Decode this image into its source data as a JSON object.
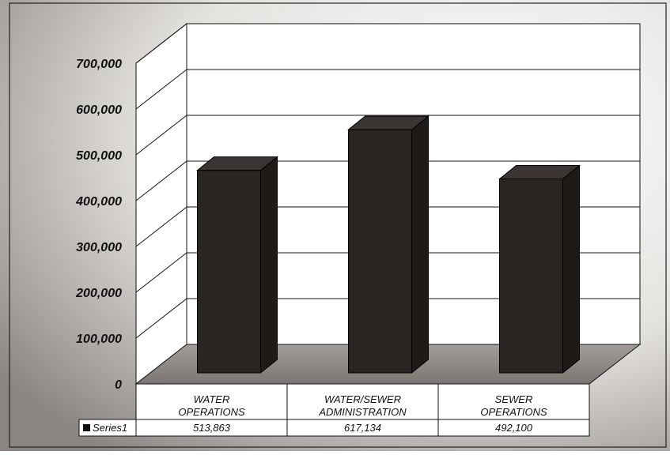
{
  "chart_data": {
    "type": "bar",
    "style": "3d-column",
    "categories": [
      "WATER OPERATIONS",
      "WATER/SEWER ADMINISTRATION",
      "SEWER OPERATIONS"
    ],
    "category_lines": [
      [
        "WATER",
        "OPERATIONS"
      ],
      [
        "WATER/SEWER",
        "ADMINISTRATION"
      ],
      [
        "SEWER",
        "OPERATIONS"
      ]
    ],
    "series": [
      {
        "name": "Series1",
        "values": [
          513863,
          617134,
          492100
        ],
        "value_labels": [
          "513,863",
          "617,134",
          "492,100"
        ]
      }
    ],
    "ylim": [
      0,
      700000
    ],
    "yticks": [
      0,
      100000,
      200000,
      300000,
      400000,
      500000,
      600000,
      700000
    ],
    "ytick_labels": [
      "0",
      "100,000",
      "200,000",
      "300,000",
      "400,000",
      "500,000",
      "600,000",
      "700,000"
    ],
    "grid": true,
    "data_table": true,
    "legend_in_table": true,
    "colors": {
      "bar": "#2a2523",
      "floor": "#8d8884",
      "frame": "#111111"
    }
  }
}
